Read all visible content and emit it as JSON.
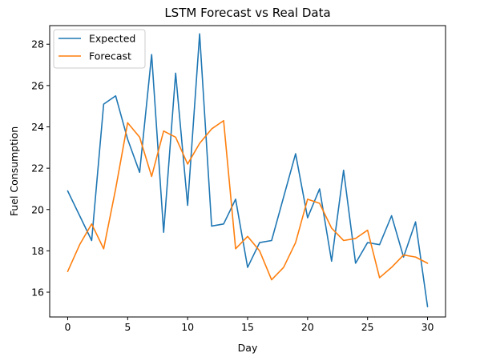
{
  "chart_data": {
    "type": "line",
    "title": "LSTM Forecast vs Real Data",
    "xlabel": "Day",
    "ylabel": "Fuel Consumption",
    "xlim": [
      -1.5,
      31.5
    ],
    "ylim": [
      14.8,
      28.9
    ],
    "xticks": [
      0,
      5,
      10,
      15,
      20,
      25,
      30
    ],
    "yticks": [
      16,
      18,
      20,
      22,
      24,
      26,
      28
    ],
    "grid": false,
    "legend_position": "top-left",
    "x": [
      0,
      1,
      2,
      3,
      4,
      5,
      6,
      7,
      8,
      9,
      10,
      11,
      12,
      13,
      14,
      15,
      16,
      17,
      18,
      19,
      20,
      21,
      22,
      23,
      24,
      25,
      26,
      27,
      28,
      29,
      30
    ],
    "series": [
      {
        "name": "Expected",
        "color": "#1f77b4",
        "values": [
          20.9,
          19.7,
          18.5,
          25.1,
          25.5,
          23.4,
          21.8,
          27.5,
          18.9,
          26.6,
          20.2,
          28.5,
          19.2,
          19.3,
          20.5,
          17.2,
          18.4,
          18.5,
          20.6,
          22.7,
          19.6,
          21.0,
          17.5,
          21.9,
          17.4,
          18.4,
          18.3,
          19.7,
          17.7,
          19.4,
          15.3
        ]
      },
      {
        "name": "Forecast",
        "color": "#ff7f0e",
        "values": [
          17.0,
          18.3,
          19.3,
          18.1,
          21.0,
          24.2,
          23.5,
          21.6,
          23.8,
          23.5,
          22.2,
          23.2,
          23.9,
          24.3,
          18.1,
          18.7,
          18.0,
          16.6,
          17.2,
          18.4,
          20.5,
          20.3,
          19.1,
          18.5,
          18.6,
          19.0,
          16.7,
          17.2,
          17.8,
          17.7,
          17.4
        ]
      }
    ]
  }
}
